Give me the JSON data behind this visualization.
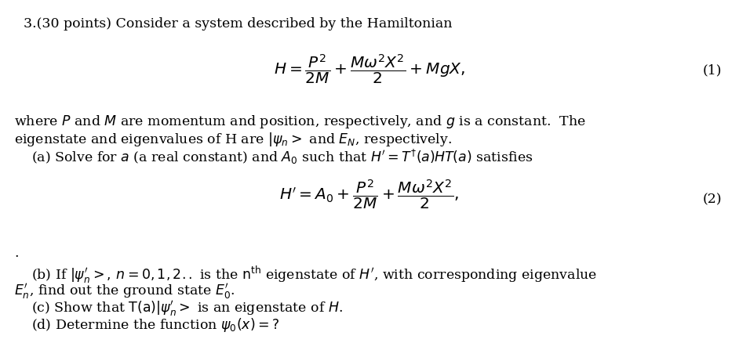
{
  "background_color": "#ffffff",
  "title_line": "3.(30 points) Consider a system described by the Hamiltonian",
  "eq1_label": "(1)",
  "eq2_label": "(2)",
  "para1_line1": "where $P$ and $M$ are momentum and position, respectively, and $g$ is a constant.  The",
  "para1_line2": "eigenstate and eigenvalues of H are $|\\psi_n >$ and $E_N$, respectively.",
  "para1_line3": "    (a) Solve for $a$ (a real constant) and $A_0$ such that $H^{\\prime} = T^{\\dagger}(a)HT(a)$ satisfies",
  "para2_line1": "    (b) If $|\\psi^{\\prime}_n >,\\, n = 0, 1, 2..$ is the $\\mathrm{n^{th}}$ eigenstate of $H^{\\prime}$, with corresponding eigenvalue",
  "para2_line2": "$E^{\\prime}_n$, find out the ground state $E^{\\prime}_0$.",
  "para2_line3": "    (c) Show that $\\mathrm{T(a)}|\\psi^{\\prime}_n >$ is an eigenstate of $H$.",
  "para2_line4": "    (d) Determine the function $\\psi_0(x) =?$",
  "dot": ".",
  "font_size_text": 12.5,
  "font_size_eq": 14.5
}
